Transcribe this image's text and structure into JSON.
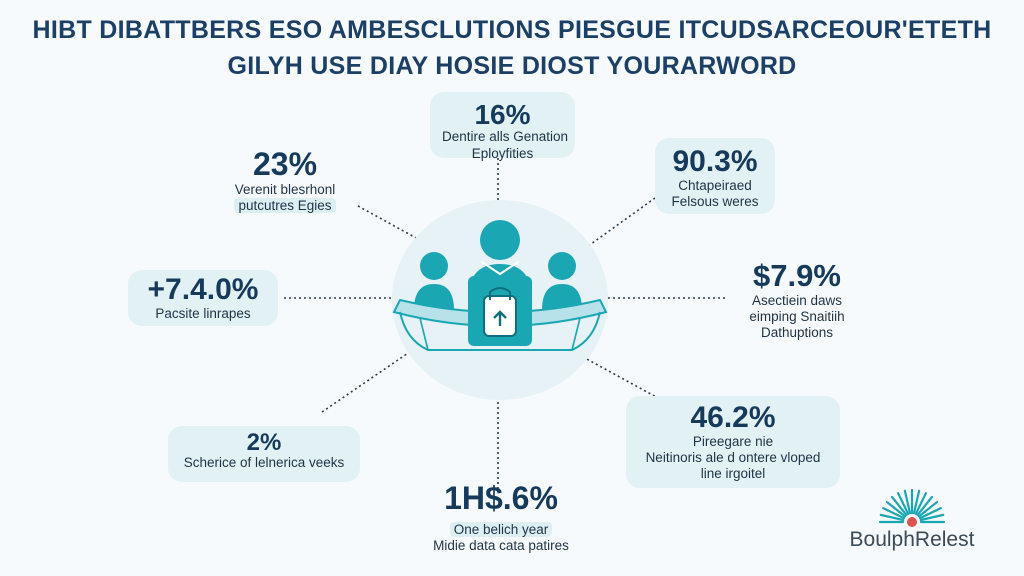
{
  "title": {
    "line1": "HIBT DIBATTBERS ESO AMBESCLUTIONS PIESGUE ITCUDSARCEOUR'ETETH",
    "line2": "GILYH USE DIAY HOSIE DIOST YOURARWORD"
  },
  "stats": {
    "top": {
      "value": "16%",
      "label1": "Dentire alls Genation",
      "label2": "Eployfities"
    },
    "upper_left": {
      "value": "23%",
      "label1": "Verenit blesrhonl",
      "label2": "putcutres Egies"
    },
    "upper_right": {
      "value": "90.3%",
      "label1": "Chtapeiraed",
      "label2": "Felsous weres"
    },
    "mid_left": {
      "value": "+7.4.0%",
      "label1": "Pacsite linrapes"
    },
    "mid_right": {
      "value": "$7.9%",
      "label1": "Asectiein daws",
      "label2": "eimping Snaitiih",
      "label3": "Dathuptions"
    },
    "lower_left": {
      "value": "2%",
      "label1": "Scherice of lelnerica veeks"
    },
    "lower_right": {
      "value": "46.2%",
      "label1": "Pireegare nie",
      "label2": "Neitinoris ale d ontere vloped",
      "label3": "line irgoitel"
    },
    "bottom": {
      "value": "1H$.6%",
      "label1": "One belich year",
      "label2": "Midie data cata patires"
    }
  },
  "logo": {
    "text": "BoulphRelest"
  },
  "colors": {
    "teal": "#1aa7b3",
    "title": "#1c3f66",
    "shade": "#e2f1f4"
  },
  "icons": {
    "center": "people-at-table-with-lock-icon",
    "logo": "fan-shell-icon"
  }
}
